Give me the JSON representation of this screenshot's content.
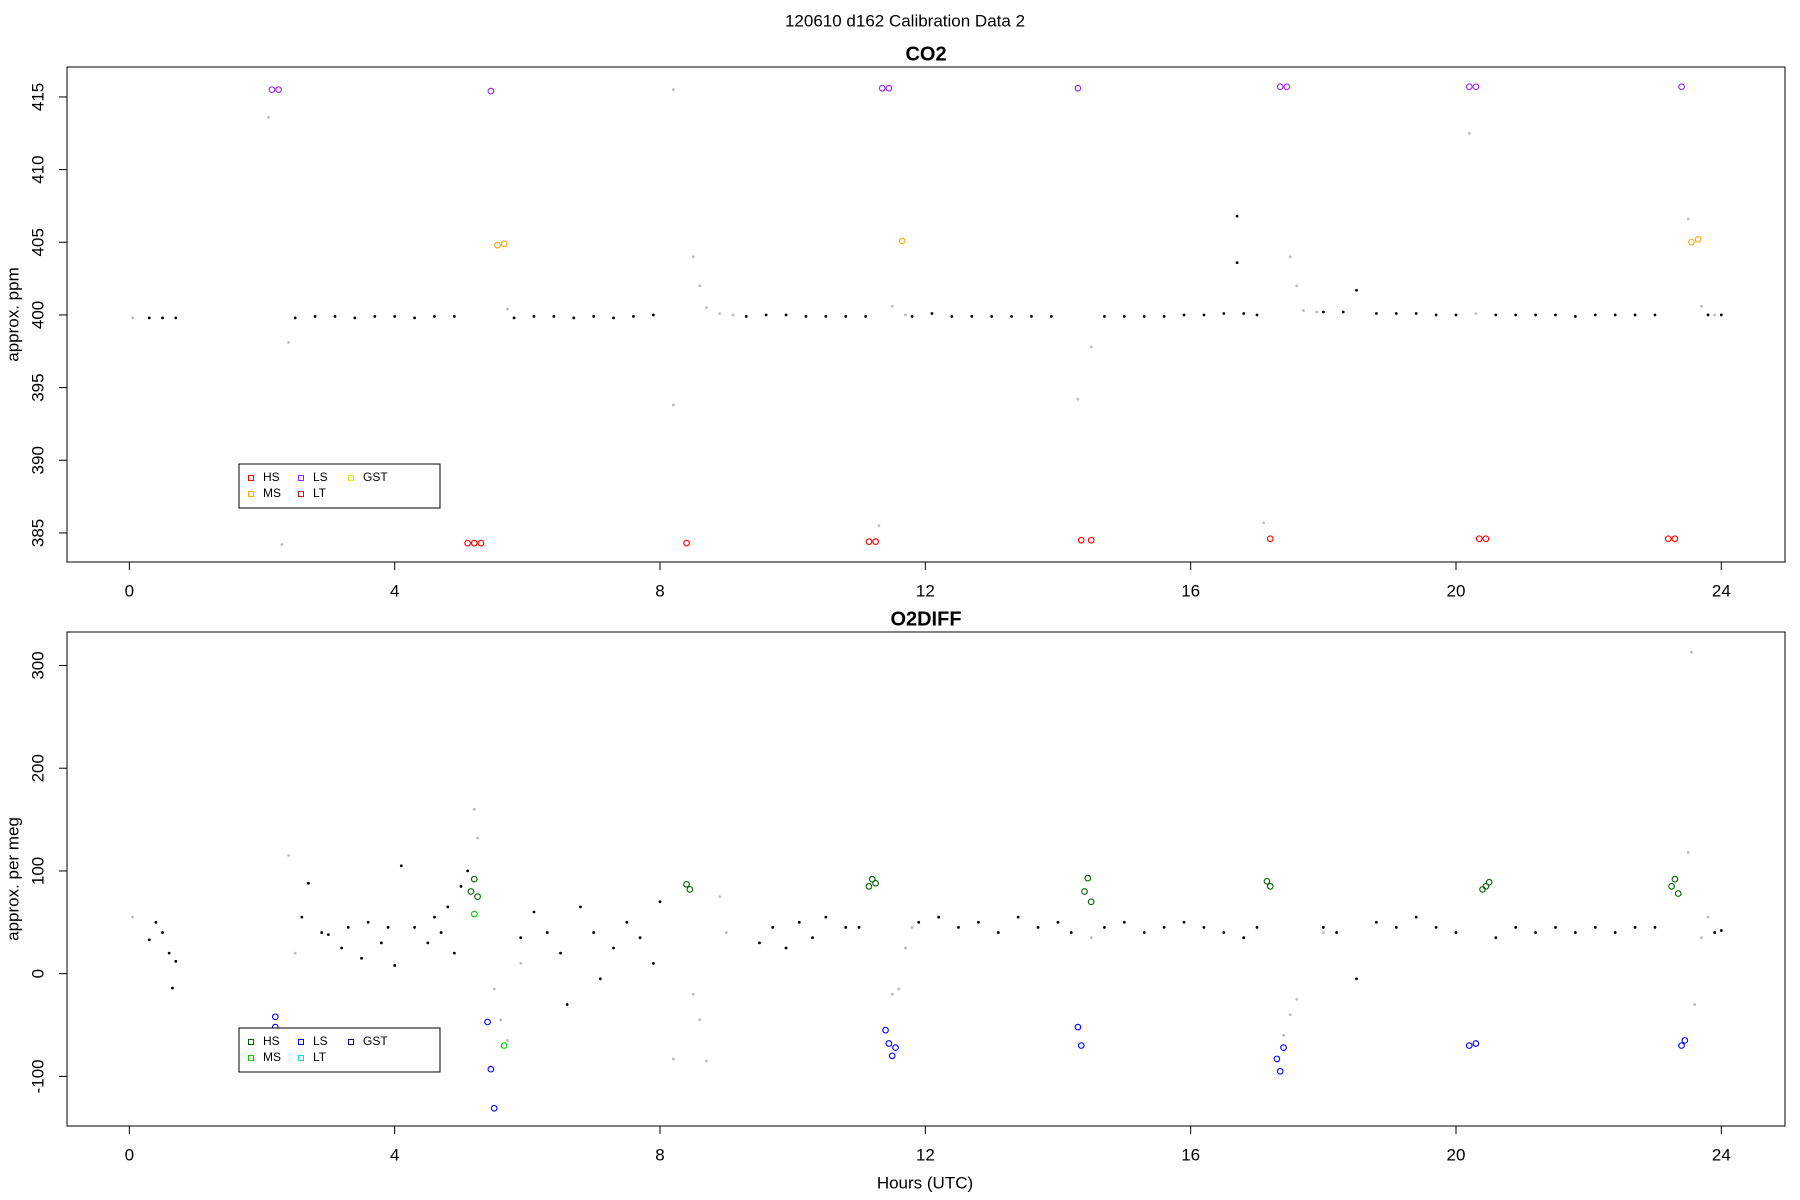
{
  "title": "120610   d162   Calibration Data 2",
  "chart_data": [
    {
      "type": "scatter",
      "title": "CO2",
      "y_label": "approx. ppm",
      "xlim": [
        -0.94,
        24.96
      ],
      "xticks": [
        0,
        4,
        8,
        12,
        16,
        20,
        24
      ],
      "ylim": [
        383.0,
        417.06
      ],
      "yticks": [
        385,
        390,
        395,
        400,
        405,
        410,
        415
      ],
      "legend": "bottom-left",
      "series": [
        {
          "color": "#000000",
          "x": [
            0.3,
            0.5,
            0.7,
            2.5,
            2.8,
            3.1,
            3.4,
            3.7,
            4.0,
            4.3,
            4.6,
            4.9,
            5.8,
            6.1,
            6.4,
            6.7,
            7.0,
            7.3,
            7.6,
            7.9,
            9.3,
            9.6,
            9.9,
            10.2,
            10.5,
            10.8,
            11.1,
            11.8,
            12.1,
            12.4,
            12.7,
            13.0,
            13.3,
            13.6,
            13.9,
            14.7,
            15.0,
            15.3,
            15.6,
            15.9,
            16.2,
            16.5,
            16.7,
            16.7,
            16.8,
            17.0,
            18.0,
            18.3,
            18.5,
            18.8,
            19.1,
            19.4,
            19.7,
            20.0,
            20.6,
            20.9,
            21.2,
            21.5,
            21.8,
            22.1,
            22.4,
            22.7,
            23.0,
            23.8,
            24.0
          ],
          "values": [
            399.8,
            399.8,
            399.8,
            399.8,
            399.9,
            399.9,
            399.8,
            399.9,
            399.9,
            399.8,
            399.9,
            399.9,
            399.8,
            399.9,
            399.9,
            399.8,
            399.9,
            399.8,
            399.9,
            400.0,
            399.9,
            400.0,
            400.0,
            399.9,
            399.9,
            399.9,
            399.9,
            399.9,
            400.1,
            399.9,
            399.9,
            399.9,
            399.9,
            399.9,
            399.9,
            399.9,
            399.9,
            399.9,
            399.9,
            400.0,
            400.0,
            400.1,
            406.8,
            403.6,
            400.1,
            400.0,
            400.2,
            400.2,
            401.7,
            400.1,
            400.1,
            400.1,
            400.0,
            400.0,
            400.0,
            400.0,
            400.0,
            400.0,
            399.9,
            400.0,
            400.0,
            400.0,
            400.0,
            400.0,
            400.0
          ]
        },
        {
          "color": "#bbbbbb",
          "x": [
            0.05,
            2.1,
            2.4,
            2.3,
            5.7,
            8.2,
            8.5,
            8.6,
            8.7,
            8.9,
            9.1,
            11.5,
            11.7,
            14.3,
            14.5,
            17.1,
            17.5,
            17.6,
            17.7,
            17.9,
            20.2,
            20.3,
            23.5,
            23.7,
            23.9,
            8.2,
            11.3
          ],
          "values": [
            399.8,
            413.6,
            398.1,
            384.2,
            400.4,
            393.8,
            404.0,
            402.0,
            400.5,
            400.1,
            400.0,
            400.6,
            400.0,
            394.2,
            397.8,
            385.7,
            404.0,
            402.0,
            400.3,
            400.2,
            412.5,
            400.1,
            406.6,
            400.6,
            400.0,
            415.5,
            385.5
          ]
        },
        {
          "name": "HS",
          "color": "#ff0000",
          "x": [
            5.1,
            5.2,
            5.3,
            8.4,
            11.15,
            11.25,
            14.35,
            14.5,
            17.2,
            20.35,
            20.45,
            23.2,
            23.3
          ],
          "values": [
            384.3,
            384.3,
            384.3,
            384.3,
            384.4,
            384.4,
            384.5,
            384.5,
            384.6,
            384.6,
            384.6,
            384.6,
            384.6
          ]
        },
        {
          "name": "MS",
          "color": "#ffa500",
          "x": [
            5.55,
            5.65,
            11.65,
            23.55,
            23.65
          ],
          "values": [
            404.8,
            404.9,
            405.1,
            405.0,
            405.2
          ]
        },
        {
          "name": "LS",
          "color": "#a020f0",
          "x": [
            2.15,
            2.25,
            5.45,
            11.35,
            11.45,
            14.3,
            17.35,
            17.45,
            20.2,
            20.3,
            23.4
          ],
          "values": [
            415.5,
            415.5,
            415.4,
            415.6,
            415.6,
            415.6,
            415.7,
            415.7,
            415.7,
            415.7,
            415.7
          ]
        },
        {
          "name": "LT",
          "color": "#b22222",
          "x": [],
          "values": []
        },
        {
          "name": "GST",
          "color": "#e8e800",
          "x": [],
          "values": []
        }
      ]
    },
    {
      "type": "scatter",
      "title": "O2DIFF",
      "y_label": "approx. per meg",
      "x_label": "Hours (UTC)",
      "xlim": [
        -0.94,
        24.96
      ],
      "xticks": [
        0,
        4,
        8,
        12,
        16,
        20,
        24
      ],
      "ylim": [
        -148.3,
        332.6
      ],
      "yticks": [
        -100,
        0,
        100,
        200,
        300
      ],
      "legend": "bottom-left",
      "series": [
        {
          "color": "#000000",
          "x": [
            0.3,
            0.4,
            0.5,
            0.6,
            0.65,
            0.7,
            2.6,
            2.7,
            2.9,
            3.0,
            3.2,
            3.3,
            3.5,
            3.6,
            3.8,
            3.9,
            4.0,
            4.1,
            4.3,
            4.5,
            4.6,
            4.7,
            4.8,
            4.9,
            5.0,
            5.1,
            5.9,
            6.1,
            6.3,
            6.5,
            6.6,
            6.8,
            7.0,
            7.1,
            7.3,
            7.5,
            7.7,
            7.9,
            8.0,
            9.5,
            9.7,
            9.9,
            10.1,
            10.3,
            10.5,
            10.8,
            11.0,
            11.9,
            12.2,
            12.5,
            12.8,
            13.1,
            13.4,
            13.7,
            14.0,
            14.2,
            14.7,
            15.0,
            15.3,
            15.6,
            15.9,
            16.2,
            16.5,
            16.8,
            17.0,
            18.0,
            18.2,
            18.5,
            18.8,
            19.1,
            19.4,
            19.7,
            20.0,
            20.6,
            20.9,
            21.2,
            21.5,
            21.8,
            22.1,
            22.4,
            22.7,
            23.0,
            23.9,
            24.0
          ],
          "values": [
            33,
            50,
            40,
            20,
            -14,
            12,
            55,
            88,
            40,
            38,
            25,
            45,
            15,
            50,
            30,
            45,
            8,
            105,
            45,
            30,
            55,
            40,
            65,
            20,
            85,
            100,
            35,
            60,
            40,
            20,
            -30,
            65,
            40,
            -5,
            25,
            50,
            35,
            10,
            70,
            30,
            45,
            25,
            50,
            35,
            55,
            45,
            45,
            50,
            55,
            45,
            50,
            40,
            55,
            45,
            50,
            40,
            45,
            50,
            40,
            45,
            50,
            45,
            40,
            35,
            45,
            45,
            40,
            -5,
            50,
            45,
            55,
            45,
            40,
            35,
            45,
            40,
            45,
            40,
            45,
            40,
            45,
            45,
            40,
            42
          ]
        },
        {
          "color": "#bbbbbb",
          "x": [
            0.05,
            2.4,
            2.5,
            5.2,
            5.25,
            5.5,
            5.6,
            5.7,
            5.9,
            8.2,
            8.5,
            8.6,
            8.7,
            8.9,
            9.0,
            11.5,
            11.6,
            11.7,
            11.8,
            14.5,
            17.4,
            17.5,
            17.6,
            18.0,
            23.5,
            23.6,
            23.7,
            23.8,
            23.55
          ],
          "values": [
            55,
            115,
            20,
            160,
            132,
            -15,
            -45,
            -65,
            10,
            -83,
            -20,
            -45,
            -85,
            75,
            40,
            -20,
            -15,
            25,
            45,
            35,
            -60,
            -40,
            -25,
            40,
            118,
            -30,
            35,
            55,
            313
          ]
        },
        {
          "name": "HS",
          "color": "#006400",
          "x": [
            5.15,
            5.2,
            5.25,
            8.4,
            8.45,
            11.15,
            11.2,
            11.25,
            14.4,
            14.45,
            14.5,
            17.15,
            17.2,
            20.4,
            20.45,
            20.5,
            23.25,
            23.3,
            23.35
          ],
          "values": [
            80,
            92,
            75,
            87,
            82,
            85,
            92,
            88,
            80,
            93,
            70,
            90,
            85,
            82,
            85,
            89,
            85,
            92,
            78
          ]
        },
        {
          "name": "MS",
          "color": "#00cc00",
          "x": [
            5.2,
            5.65
          ],
          "values": [
            58,
            -70
          ]
        },
        {
          "name": "LS",
          "color": "#0000ff",
          "x": [
            2.2,
            2.2,
            5.4,
            5.45,
            5.5,
            11.4,
            11.45,
            11.5,
            11.55,
            14.3,
            14.35,
            17.3,
            17.35,
            17.4,
            20.2,
            20.3,
            23.4,
            23.45
          ],
          "values": [
            -42,
            -52,
            -47,
            -93,
            -131,
            -55,
            -68,
            -80,
            -72,
            -52,
            -70,
            -83,
            -95,
            -72,
            -70,
            -68,
            -70,
            -65
          ]
        },
        {
          "name": "LT",
          "color": "#00e5e5",
          "x": [],
          "values": []
        },
        {
          "name": "GST",
          "color": "#00008b",
          "x": [],
          "values": []
        }
      ]
    }
  ]
}
